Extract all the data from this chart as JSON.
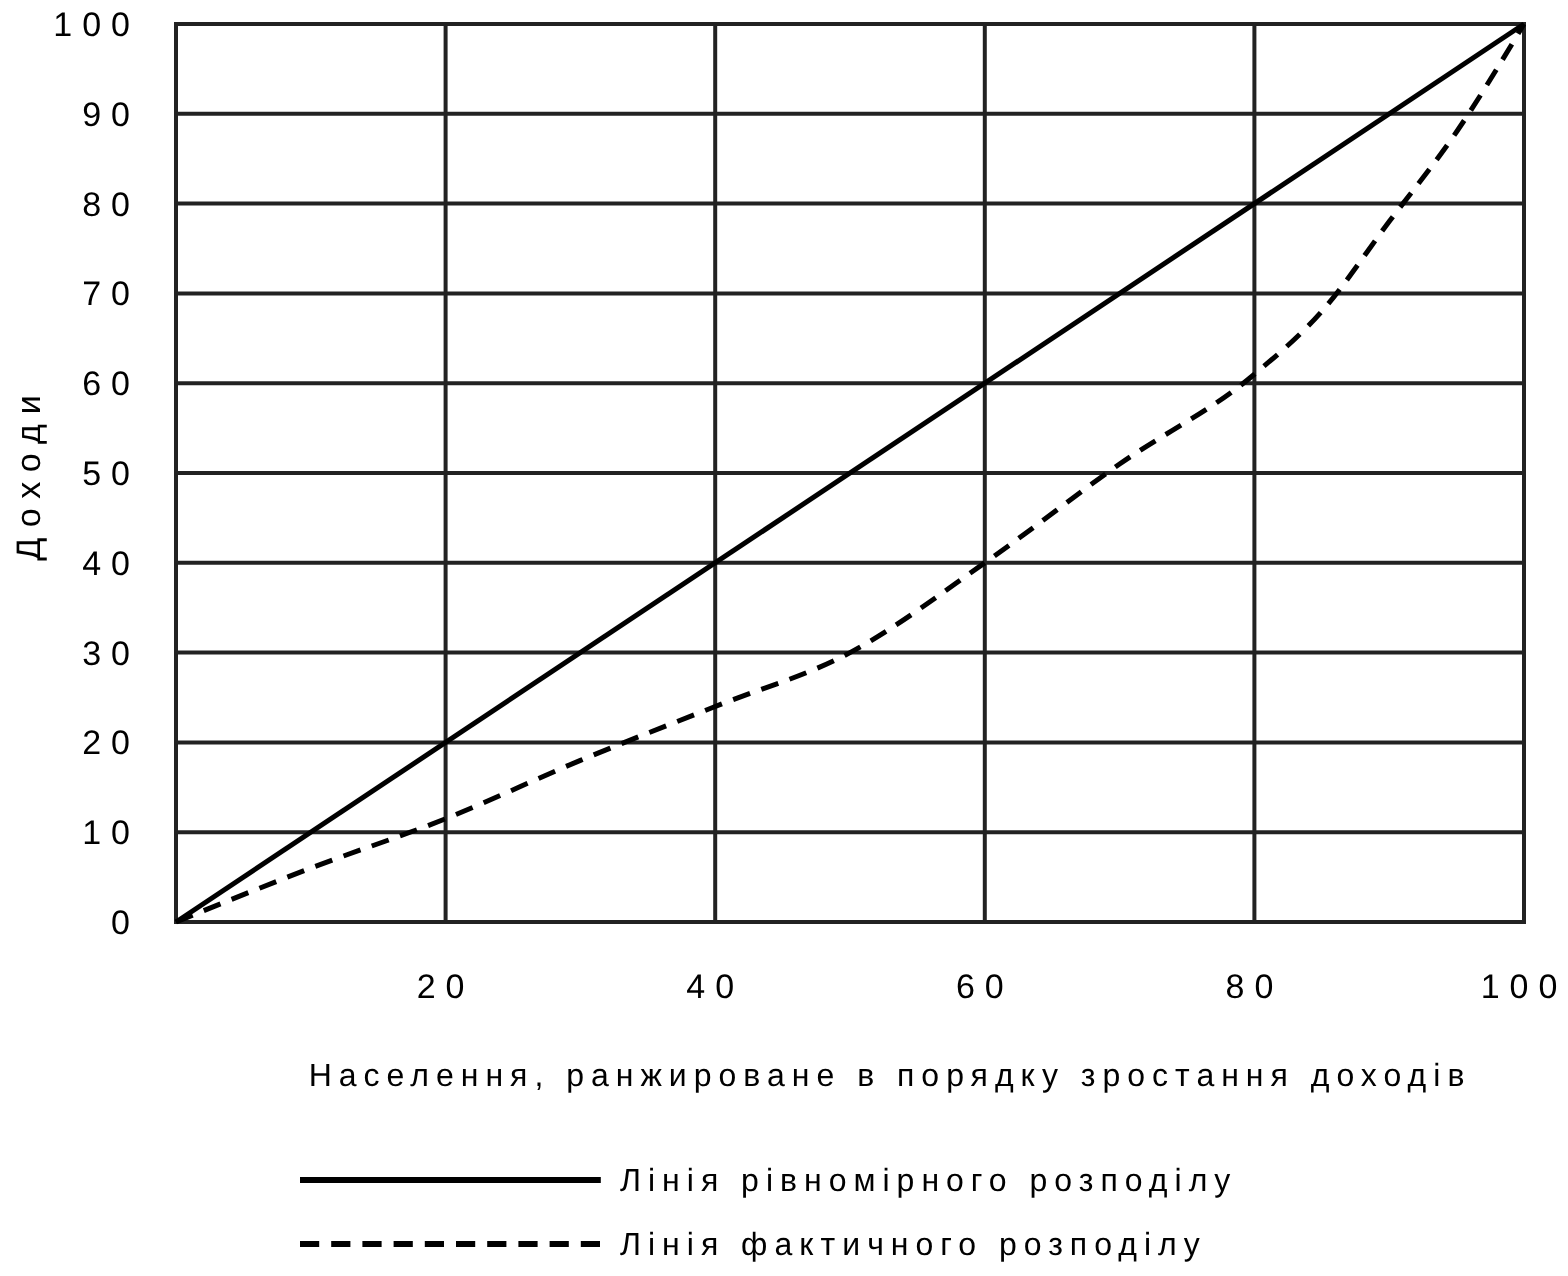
{
  "chart_data": {
    "type": "line",
    "xlabel": "Населення, ранжироване в порядку зростання доходів",
    "ylabel": "Доходи",
    "xlim": [
      0,
      100
    ],
    "ylim": [
      0,
      100
    ],
    "xticks": [
      20,
      40,
      60,
      80,
      100
    ],
    "yticks": [
      0,
      10,
      20,
      30,
      40,
      50,
      60,
      70,
      80,
      90,
      100
    ],
    "grid": true,
    "legend": "bottom",
    "marker": "none",
    "series": [
      {
        "name": "Лінія рівномірного розподілу",
        "color": "#000000",
        "line_style": "solid",
        "x": [
          0,
          100
        ],
        "values": [
          0,
          100
        ]
      },
      {
        "name": "Лінія фактичного розподілу",
        "color": "#000000",
        "line_style": "dashed",
        "x": [
          0,
          10,
          20,
          30,
          40,
          50,
          60,
          70,
          80,
          85,
          90,
          95,
          100
        ],
        "values": [
          0,
          6,
          11.5,
          18,
          24,
          30,
          40,
          51,
          61,
          68,
          78,
          88,
          100
        ]
      }
    ]
  }
}
